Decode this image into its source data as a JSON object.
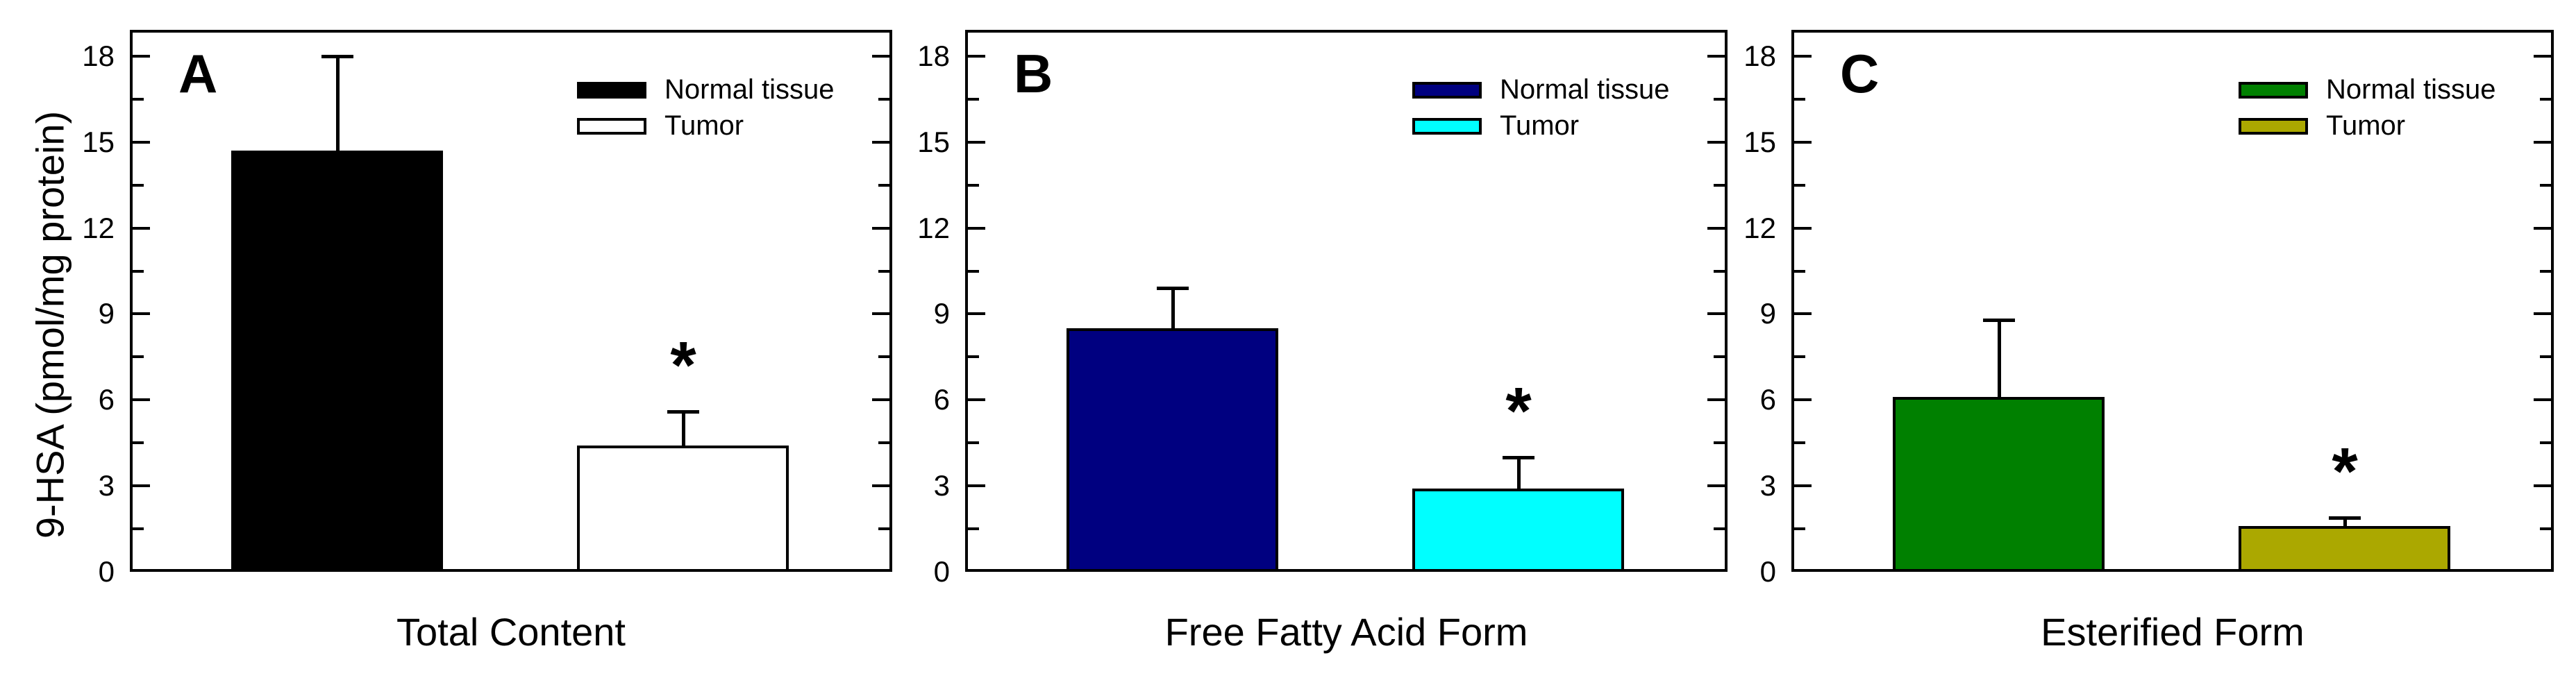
{
  "chart_data": {
    "type": "bar",
    "ylabel": "9-HSA (pmol/mg protein)",
    "ylim": [
      0,
      19
    ],
    "yticks": [
      0,
      3,
      6,
      9,
      12,
      15,
      18
    ],
    "minor_tick_step": 1.5,
    "grid": false,
    "legend_position": "top-right-inside",
    "significance_marker": "*",
    "series_names": [
      "Normal tissue",
      "Tumor"
    ],
    "axis_color": "#000000",
    "background": "#FFFFFF",
    "panels": [
      {
        "label": "A",
        "category": "Total Content",
        "series": [
          {
            "name": "Normal tissue",
            "value": 14.7,
            "error_high": 18.0,
            "fill": "#000000"
          },
          {
            "name": "Tumor",
            "value": 4.4,
            "error_high": 5.6,
            "fill": "#FFFFFF",
            "significant": "*"
          }
        ]
      },
      {
        "label": "B",
        "category": "Free Fatty Acid Form",
        "series": [
          {
            "name": "Normal tissue",
            "value": 8.5,
            "error_high": 9.9,
            "fill": "#000080"
          },
          {
            "name": "Tumor",
            "value": 2.9,
            "error_high": 4.0,
            "fill": "#00FFFF",
            "significant": "*"
          }
        ]
      },
      {
        "label": "C",
        "category": "Esterified Form",
        "series": [
          {
            "name": "Normal tissue",
            "value": 6.1,
            "error_high": 8.8,
            "fill": "#008000"
          },
          {
            "name": "Tumor",
            "value": 1.6,
            "error_high": 1.9,
            "fill": "#ABA800",
            "significant": "*"
          }
        ]
      }
    ]
  }
}
